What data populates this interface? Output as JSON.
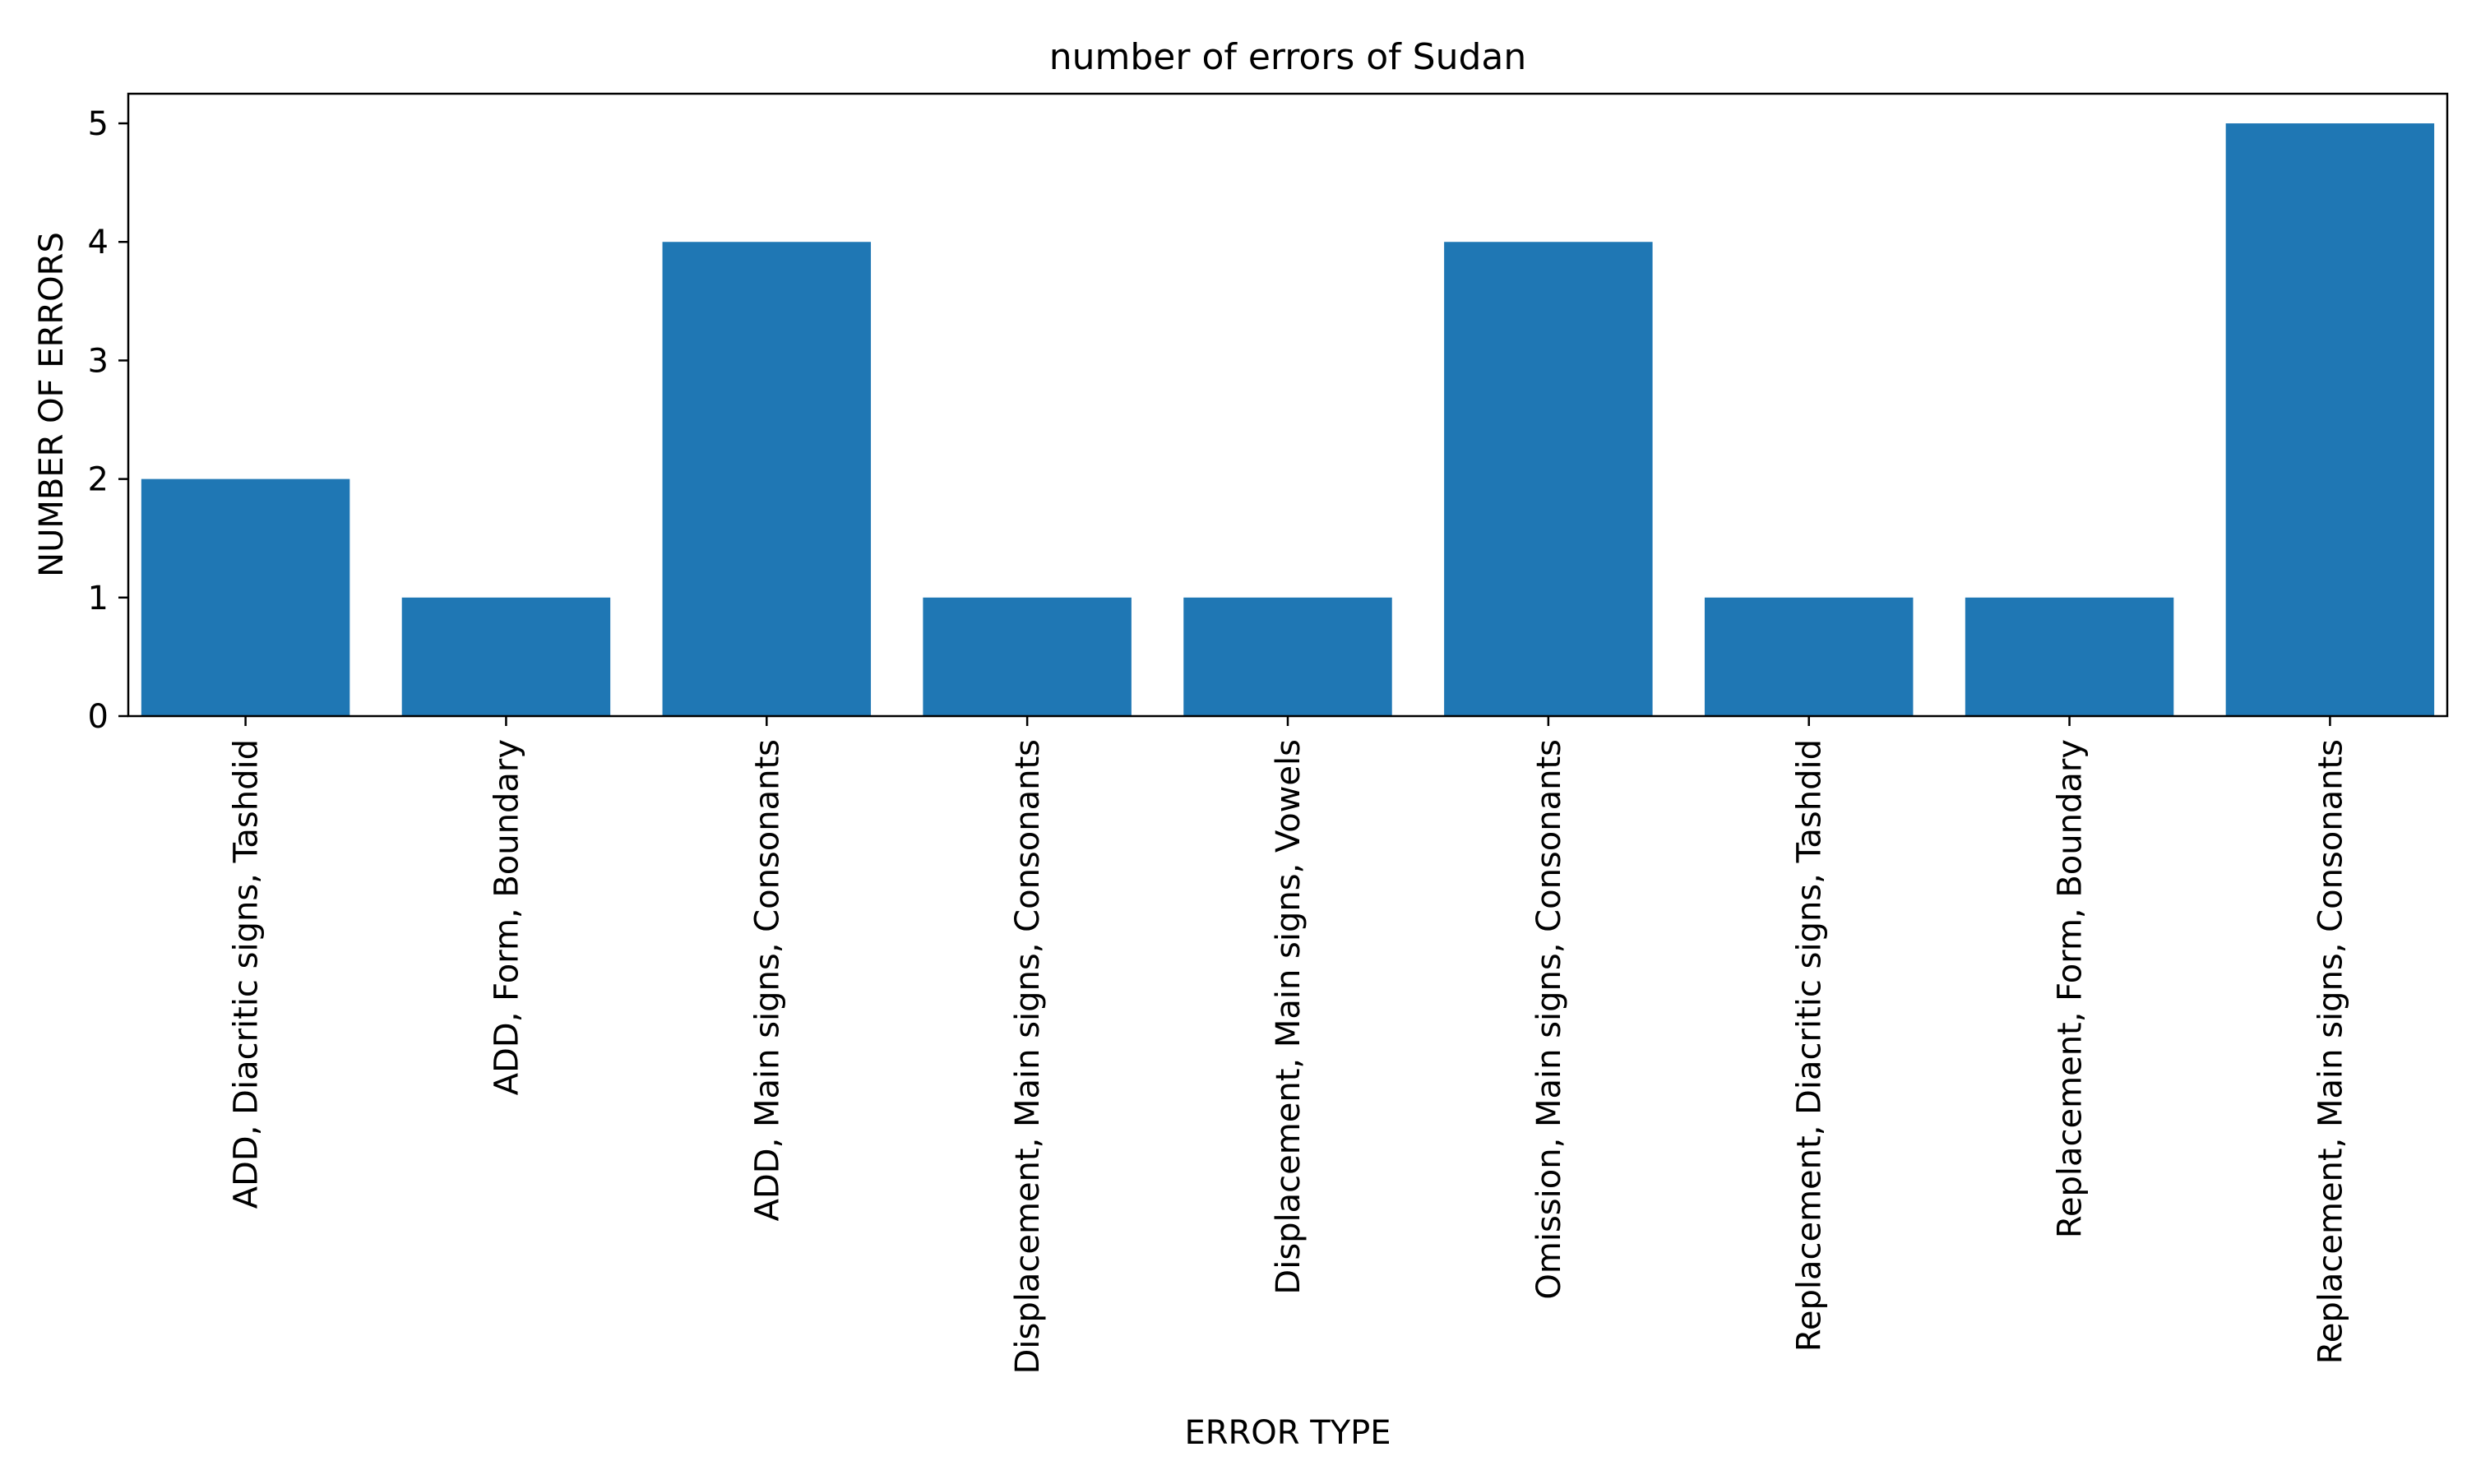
{
  "chart_data": {
    "type": "bar",
    "title": "number of errors of Sudan",
    "xlabel": "ERROR TYPE",
    "ylabel": "NUMBER OF ERRORS",
    "categories": [
      "ADD, Diacritic signs, Tashdid",
      "ADD, Form, Boundary",
      "ADD, Main signs, Consonants",
      "Displacement, Main signs, Consonants",
      "Displacement, Main signs, Vowels",
      "Omission, Main signs, Consonants",
      "Replacement, Diacritic signs, Tashdid",
      "Replacement, Form, Boundary",
      "Replacement, Main signs, Consonants"
    ],
    "values": [
      2,
      1,
      4,
      1,
      1,
      4,
      1,
      1,
      5
    ],
    "ylim": [
      0,
      5.25
    ],
    "yticks": [
      0,
      1,
      2,
      3,
      4,
      5
    ],
    "bar_color": "#1f77b4",
    "grid": false,
    "legend": "none"
  }
}
